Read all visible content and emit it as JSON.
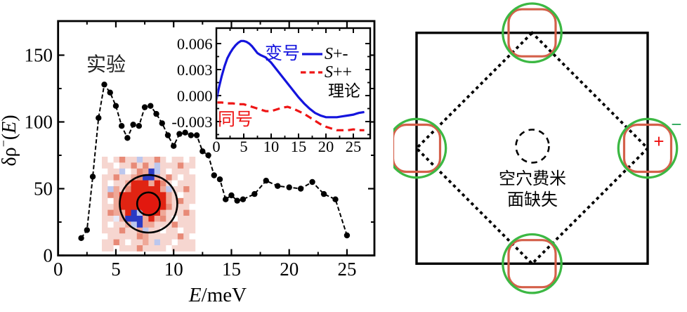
{
  "left_panel": {
    "annotation_experiment": "实验",
    "axis": {
      "xlabel_var": "E",
      "xlabel_rest": "/meV",
      "ylabel_base": "δρ",
      "ylabel_sup": "−",
      "ylabel_open": "(",
      "ylabel_var": "E",
      "ylabel_close": ")"
    },
    "xticks": {
      "major": [
        0,
        5,
        10,
        15,
        20,
        25
      ],
      "minor": [
        2.5,
        7.5,
        12.5,
        17.5,
        22.5
      ]
    },
    "yticks": {
      "major": [
        0,
        50,
        100,
        150
      ],
      "minor": [
        25,
        75,
        125
      ]
    }
  },
  "inset": {
    "label_sign_change": "变号",
    "label_same_sign": "同号",
    "legend_note": "理论",
    "legend": [
      {
        "label": "S+-",
        "color": "#1414dd",
        "style": "solid"
      },
      {
        "label": "S++",
        "color": "#ee1515",
        "style": "dashed"
      }
    ],
    "xticks": {
      "major": [
        0,
        5,
        10,
        15,
        20,
        25
      ],
      "minor": [
        2.5,
        7.5,
        12.5,
        17.5,
        22.5
      ]
    },
    "yticks": {
      "major": [
        0.006,
        0.003,
        0,
        -0.003
      ],
      "major_labels": [
        "0.006",
        "0.003",
        "0.000",
        "-0.003"
      ],
      "minor": [
        0.0045,
        0.0015,
        -0.0015,
        -0.0045
      ]
    }
  },
  "chart_data": [
    {
      "type": "scatter",
      "title": "实验",
      "xlabel": "E/meV",
      "ylabel": "δρ⁻(E)",
      "xlim": [
        0,
        27.4
      ],
      "ylim": [
        0,
        175
      ],
      "xticks": [
        0,
        5,
        10,
        15,
        20,
        25
      ],
      "yticks": [
        0,
        50,
        100,
        150
      ],
      "series": [
        {
          "name": "experiment",
          "color": "#000000",
          "marker": "circle",
          "line": "dashed",
          "x": [
            2,
            2.5,
            3,
            3.5,
            4,
            4.5,
            5,
            5.5,
            6,
            6.5,
            7,
            7.5,
            8,
            8.5,
            9,
            9.5,
            10,
            10.5,
            11,
            11.5,
            12,
            12.5,
            13,
            13.5,
            14,
            14.5,
            15,
            15.5,
            16,
            17,
            18,
            19,
            20,
            21,
            22,
            23,
            24,
            25
          ],
          "y": [
            13,
            19,
            59,
            103,
            128,
            122,
            112,
            97,
            88,
            98,
            97,
            111,
            112,
            106,
            99,
            90,
            82,
            91,
            92,
            90,
            90,
            78,
            75,
            60,
            57,
            42,
            45,
            41,
            42,
            46,
            56,
            52,
            51,
            50,
            55,
            46,
            42,
            15
          ]
        }
      ]
    },
    {
      "type": "line",
      "title": "理论",
      "xlim": [
        0,
        28
      ],
      "ylim": [
        -0.0049,
        0.0078
      ],
      "xticks": [
        0,
        5,
        10,
        15,
        20,
        25
      ],
      "yticks": [
        0.006,
        0.003,
        0,
        -0.003
      ],
      "series": [
        {
          "name": "S+-",
          "color": "#1414dd",
          "dash": "solid",
          "x": [
            0,
            0.5,
            1,
            1.5,
            2,
            2.5,
            3,
            3.5,
            4,
            4.5,
            5,
            5.5,
            6,
            6.5,
            7,
            7.5,
            8,
            9,
            10,
            11,
            12,
            13,
            14,
            15,
            16,
            17,
            18,
            19,
            20,
            21,
            22,
            23,
            24,
            25,
            26,
            27
          ],
          "y": [
            -0.0005,
            0.001,
            0.0023,
            0.0034,
            0.0043,
            0.0049,
            0.0054,
            0.0058,
            0.0061,
            0.0063,
            0.0063,
            0.0062,
            0.006,
            0.0057,
            0.0053,
            0.0049,
            0.0047,
            0.0044,
            0.0038,
            0.003,
            0.0022,
            0.0014,
            0.0006,
            -0.0002,
            -0.0009,
            -0.0015,
            -0.002,
            -0.0023,
            -0.0025,
            -0.0025,
            -0.0025,
            -0.0024,
            -0.0023,
            -0.0022,
            -0.002,
            -0.0019
          ]
        },
        {
          "name": "S++",
          "color": "#ee1515",
          "dash": "dashed",
          "x": [
            0,
            1,
            2,
            3,
            4,
            5,
            6,
            7,
            8,
            9,
            10,
            11,
            12,
            13,
            14,
            15,
            16,
            17,
            18,
            19,
            20,
            21,
            22,
            23,
            24,
            25,
            26,
            27
          ],
          "y": [
            -0.0008,
            -0.0008,
            -0.0009,
            -0.0009,
            -0.001,
            -0.001,
            -0.0012,
            -0.0014,
            -0.0016,
            -0.0018,
            -0.0018,
            -0.0016,
            -0.0014,
            -0.0013,
            -0.0015,
            -0.0018,
            -0.0021,
            -0.0025,
            -0.0029,
            -0.0033,
            -0.0036,
            -0.0038,
            -0.004,
            -0.004,
            -0.004,
            -0.0039,
            -0.004,
            -0.004
          ]
        }
      ]
    },
    {
      "type": "heatmap",
      "name": "QPI map inset",
      "palette": {
        "w": "#ffffff",
        "p": "#f6d6d0",
        "q": "#efa898",
        "r": "#e88a77",
        "R": "#e02413",
        "b": "#bcc7ee",
        "B": "#2b3bc4",
        "l": "#e6e9f8"
      },
      "rows": [
        "pwprppbpprpwppwp",
        "ppwpprprpbppprpp",
        "wppbwprqBbpwpppw",
        "pprppqrBBqprpwpp",
        "pwppqRRRqRrpwppp",
        "pbqprRRRRRqbpprp",
        "prqRRRRRRRRqpwpp",
        "pwqRRRRRRRRqprpp",
        "ppqRRRRRRRRrpppw",
        "prqqRBbRRRqppprp",
        "pplqBBBqRqrpwppp",
        "pwppqbBqqppprppp",
        "ppprppqbppwppwpp",
        "wppppprqppppprpw",
        "pprpwppqpbppwppp",
        "ppwppprppppwpppp"
      ]
    }
  ],
  "right_panel": {
    "labels": {
      "center_line1": "空穴费米",
      "center_line2": "面缺失",
      "plus": "+",
      "minus": "−"
    },
    "colors": {
      "zone_border": "#000000",
      "diamond": "#000000",
      "pocket_outer_green": "#3cb843",
      "pocket_inner_red": "#d4604a",
      "plus_sign": "#ee1111",
      "minus_sign": "#2fa95c"
    }
  }
}
